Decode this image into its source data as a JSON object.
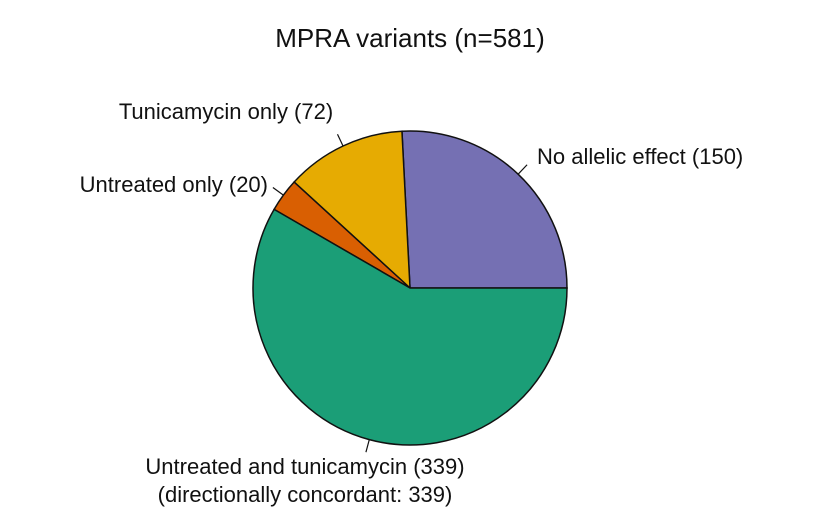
{
  "chart_data": {
    "type": "pie",
    "title": "MPRA variants (n=581)",
    "categories": [
      "No allelic effect (150)",
      "Tunicamycin only (72)",
      "Untreated only (20)",
      "Untreated and tunicamycin (339)"
    ],
    "values": [
      150,
      72,
      20,
      339
    ],
    "colors": [
      "#7570b3",
      "#e6ab02",
      "#d95f02",
      "#1b9e77"
    ],
    "annotations": [
      "(directionally concordant: 339)"
    ]
  }
}
